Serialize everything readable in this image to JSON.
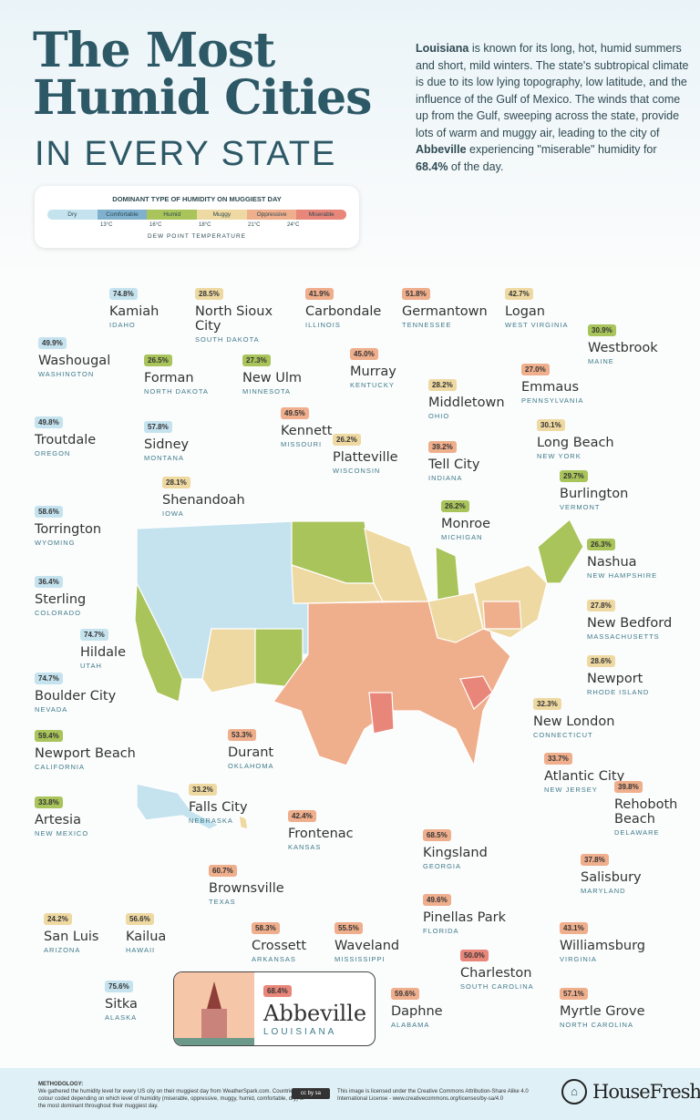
{
  "title": {
    "line1": "The Most",
    "line2": "Humid Cities",
    "line3": "IN EVERY STATE"
  },
  "intro": {
    "state": "Louisiana",
    "text1": " is known for its long, hot, humid summers and short, mild winters. The state's subtropical climate is due to its low lying topography, low latitude, and the influence of the Gulf of Mexico. The winds that come up from the Gulf, sweeping across the state, provide lots of warm and muggy air, leading to the city of ",
    "city": "Abbeville",
    "text2": " experiencing \"miserable\" humidity for ",
    "pct": "68.4%",
    "text3": " of the day."
  },
  "legend": {
    "title": "DOMINANT TYPE OF HUMIDITY ON MUGGIEST DAY",
    "categories": [
      {
        "key": "dry",
        "label": "Dry",
        "color": "#c5e3ef"
      },
      {
        "key": "comfortable",
        "label": "Comfortable",
        "color": "#7fb1cf"
      },
      {
        "key": "humid",
        "label": "Humid",
        "color": "#a9c45a"
      },
      {
        "key": "muggy",
        "label": "Muggy",
        "color": "#efd9a2"
      },
      {
        "key": "oppressive",
        "label": "Oppressive",
        "color": "#efae8c"
      },
      {
        "key": "miserable",
        "label": "Miserable",
        "color": "#e9867a"
      }
    ],
    "ticks": [
      "13°C",
      "16°C",
      "18°C",
      "21°C",
      "24°C"
    ],
    "axis_label": "DEW POINT TEMPERATURE"
  },
  "cities": [
    {
      "pct": "74.8%",
      "name": "Kamiah",
      "state": "IDAHO",
      "cat": "dry"
    },
    {
      "pct": "28.5%",
      "name": "North Sioux City",
      "state": "SOUTH DAKOTA",
      "cat": "muggy"
    },
    {
      "pct": "41.9%",
      "name": "Carbondale",
      "state": "ILLINOIS",
      "cat": "oppressive"
    },
    {
      "pct": "51.8%",
      "name": "Germantown",
      "state": "TENNESSEE",
      "cat": "oppressive"
    },
    {
      "pct": "42.7%",
      "name": "Logan",
      "state": "WEST VIRGINIA",
      "cat": "muggy"
    },
    {
      "pct": "30.9%",
      "name": "Westbrook",
      "state": "MAINE",
      "cat": "humid"
    },
    {
      "pct": "49.9%",
      "name": "Washougal",
      "state": "WASHINGTON",
      "cat": "dry"
    },
    {
      "pct": "26.5%",
      "name": "Forman",
      "state": "NORTH DAKOTA",
      "cat": "humid"
    },
    {
      "pct": "27.3%",
      "name": "New Ulm",
      "state": "MINNESOTA",
      "cat": "humid"
    },
    {
      "pct": "45.0%",
      "name": "Murray",
      "state": "KENTUCKY",
      "cat": "oppressive"
    },
    {
      "pct": "27.0%",
      "name": "Emmaus",
      "state": "PENNSYLVANIA",
      "cat": "oppressive"
    },
    {
      "pct": "28.2%",
      "name": "Middletown",
      "state": "OHIO",
      "cat": "muggy"
    },
    {
      "pct": "49.5%",
      "name": "Kennett",
      "state": "MISSOURI",
      "cat": "oppressive"
    },
    {
      "pct": "49.8%",
      "name": "Troutdale",
      "state": "OREGON",
      "cat": "dry"
    },
    {
      "pct": "57.8%",
      "name": "Sidney",
      "state": "MONTANA",
      "cat": "dry"
    },
    {
      "pct": "30.1%",
      "name": "Long Beach",
      "state": "NEW YORK",
      "cat": "muggy"
    },
    {
      "pct": "39.2%",
      "name": "Tell City",
      "state": "INDIANA",
      "cat": "oppressive"
    },
    {
      "pct": "26.2%",
      "name": "Platteville",
      "state": "WISCONSIN",
      "cat": "muggy"
    },
    {
      "pct": "29.7%",
      "name": "Burlington",
      "state": "VERMONT",
      "cat": "humid"
    },
    {
      "pct": "28.1%",
      "name": "Shenandoah",
      "state": "IOWA",
      "cat": "muggy"
    },
    {
      "pct": "26.2%",
      "name": "Monroe",
      "state": "MICHIGAN",
      "cat": "humid"
    },
    {
      "pct": "58.6%",
      "name": "Torrington",
      "state": "WYOMING",
      "cat": "dry"
    },
    {
      "pct": "26.3%",
      "name": "Nashua",
      "state": "NEW HAMPSHIRE",
      "cat": "humid"
    },
    {
      "pct": "36.4%",
      "name": "Sterling",
      "state": "COLORADO",
      "cat": "dry"
    },
    {
      "pct": "27.8%",
      "name": "New Bedford",
      "state": "MASSACHUSETTS",
      "cat": "muggy"
    },
    {
      "pct": "74.7%",
      "name": "Hildale",
      "state": "UTAH",
      "cat": "dry"
    },
    {
      "pct": "28.6%",
      "name": "Newport",
      "state": "RHODE ISLAND",
      "cat": "muggy"
    },
    {
      "pct": "74.7%",
      "name": "Boulder City",
      "state": "NEVADA",
      "cat": "dry"
    },
    {
      "pct": "32.3%",
      "name": "New London",
      "state": "CONNECTICUT",
      "cat": "muggy"
    },
    {
      "pct": "59.4%",
      "name": "Newport Beach",
      "state": "CALIFORNIA",
      "cat": "humid"
    },
    {
      "pct": "53.3%",
      "name": "Durant",
      "state": "OKLAHOMA",
      "cat": "oppressive"
    },
    {
      "pct": "33.7%",
      "name": "Atlantic City",
      "state": "NEW JERSEY",
      "cat": "oppressive"
    },
    {
      "pct": "39.8%",
      "name": "Rehoboth Beach",
      "state": "DELAWARE",
      "cat": "oppressive"
    },
    {
      "pct": "33.2%",
      "name": "Falls City",
      "state": "NEBRASKA",
      "cat": "muggy"
    },
    {
      "pct": "33.8%",
      "name": "Artesia",
      "state": "NEW MEXICO",
      "cat": "humid"
    },
    {
      "pct": "42.4%",
      "name": "Frontenac",
      "state": "KANSAS",
      "cat": "oppressive"
    },
    {
      "pct": "68.5%",
      "name": "Kingsland",
      "state": "GEORGIA",
      "cat": "oppressive"
    },
    {
      "pct": "37.8%",
      "name": "Salisbury",
      "state": "MARYLAND",
      "cat": "oppressive"
    },
    {
      "pct": "60.7%",
      "name": "Brownsville",
      "state": "TEXAS",
      "cat": "oppressive"
    },
    {
      "pct": "49.6%",
      "name": "Pinellas Park",
      "state": "FLORIDA",
      "cat": "oppressive"
    },
    {
      "pct": "24.2%",
      "name": "San Luis",
      "state": "ARIZONA",
      "cat": "muggy"
    },
    {
      "pct": "56.6%",
      "name": "Kailua",
      "state": "HAWAII",
      "cat": "muggy"
    },
    {
      "pct": "58.3%",
      "name": "Crossett",
      "state": "ARKANSAS",
      "cat": "oppressive"
    },
    {
      "pct": "55.5%",
      "name": "Waveland",
      "state": "MISSISSIPPI",
      "cat": "oppressive"
    },
    {
      "pct": "43.1%",
      "name": "Williamsburg",
      "state": "VIRGINIA",
      "cat": "oppressive"
    },
    {
      "pct": "50.0%",
      "name": "Charleston",
      "state": "SOUTH CAROLINA",
      "cat": "miserable"
    },
    {
      "pct": "75.6%",
      "name": "Sitka",
      "state": "ALASKA",
      "cat": "dry"
    },
    {
      "pct": "59.6%",
      "name": "Daphne",
      "state": "ALABAMA",
      "cat": "oppressive"
    },
    {
      "pct": "57.1%",
      "name": "Myrtle Grove",
      "state": "NORTH CAROLINA",
      "cat": "oppressive"
    }
  ],
  "highlight": {
    "pct": "68.4%",
    "name": "Abbeville",
    "state": "LOUISIANA",
    "cat": "miserable"
  },
  "footer": {
    "methodology_title": "METHODOLOGY:",
    "methodology_text": "We gathered the humidity level for every US city on their muggiest day from WeatherSpark.com. Countries are colour coded depending on which level of humidity (miserable, oppressive, muggy, humid, comfortable, dry) is the most dominant throughout their muggiest day.",
    "cc_badge": "cc by sa",
    "license": "This image is licensed under the Creative Commons Attribution-Share Alike 4.0 International License - www.creativecommons.org/licenses/by-sa/4.0",
    "brand": "HouseFresh"
  }
}
